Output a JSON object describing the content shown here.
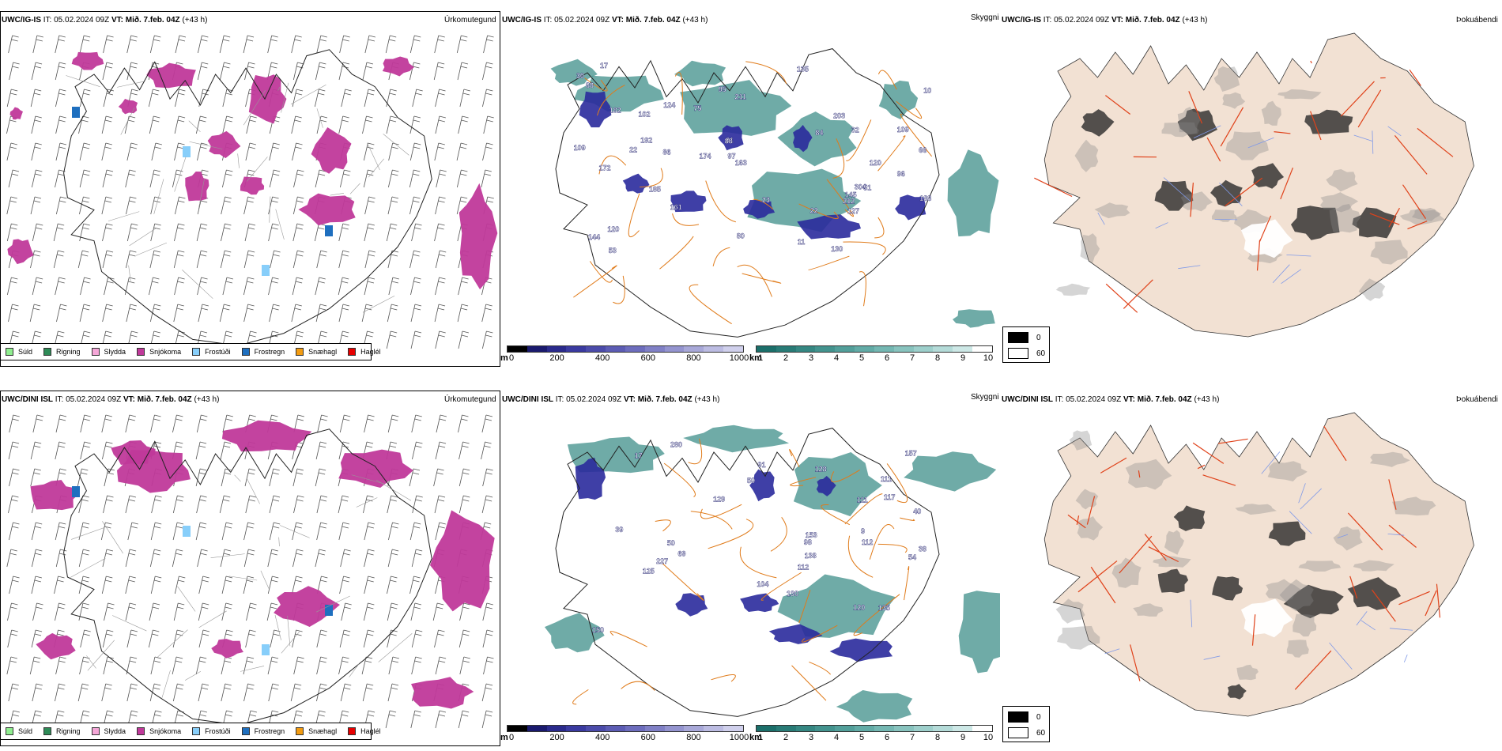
{
  "rows": [
    {
      "model": "UWC/IG-IS",
      "precip": {
        "title": "Úrkomutegund"
      },
      "cloud": {
        "title": "Skyggni"
      },
      "fog": {
        "title": "Þokuábendi"
      },
      "cloud_labels": [
        "135",
        "11",
        "86",
        "84",
        "75",
        "304",
        "144",
        "120",
        "102",
        "17",
        "95",
        "51",
        "53",
        "91",
        "10",
        "211",
        "185",
        "30",
        "80",
        "182",
        "161",
        "163",
        "97",
        "172",
        "32",
        "23",
        "127",
        "212",
        "203",
        "22",
        "130",
        "174",
        "120",
        "109",
        "145",
        "88",
        "66",
        "124",
        "188",
        "109",
        "192",
        "88",
        "22",
        "96"
      ]
    },
    {
      "model": "UWC/DINI ISL",
      "precip": {
        "title": "Úrkomutegund"
      },
      "cloud": {
        "title": "Skyggni"
      },
      "fog": {
        "title": "Þokuábendi"
      },
      "cloud_labels": [
        "130",
        "98",
        "111",
        "128",
        "39",
        "50",
        "69",
        "54",
        "104",
        "9",
        "129",
        "117",
        "91",
        "135",
        "153",
        "120",
        "112",
        "125",
        "157",
        "150",
        "111",
        "280",
        "50",
        "40",
        "17",
        "227",
        "112",
        "38",
        "138"
      ]
    }
  ],
  "header": {
    "it_label": "IT:",
    "it_value": "05.02.2024 09Z",
    "vt_label": "VT:",
    "vt_value": "Mið. 7.feb. 04Z",
    "lead": "(+43 h)"
  },
  "precip_legend": [
    {
      "label": "Súld",
      "color": "#90ee90"
    },
    {
      "label": "Rigning",
      "color": "#2e8b57"
    },
    {
      "label": "Slydda",
      "color": "#f4a6d7"
    },
    {
      "label": "Snjókoma",
      "color": "#c0399a"
    },
    {
      "label": "Frostúði",
      "color": "#87cefa"
    },
    {
      "label": "Frostregn",
      "color": "#1e6fbf"
    },
    {
      "label": "Snæhagl",
      "color": "#f39c12"
    },
    {
      "label": "Haglél",
      "color": "#e60000"
    }
  ],
  "cloudbase_bar": {
    "unit": "m",
    "ticks": [
      "0",
      "200",
      "400",
      "600",
      "800",
      "1000"
    ],
    "colors": [
      "#000000",
      "#1a1a6e",
      "#2a2a8c",
      "#3a3aa0",
      "#4b4baa",
      "#5c5cb4",
      "#6d6dbd",
      "#8080c6",
      "#9494cf",
      "#a8a8d8",
      "#bcbce2",
      "#d0d0ec"
    ]
  },
  "visibility_bar": {
    "unit": "km",
    "ticks": [
      "1",
      "2",
      "3",
      "4",
      "5",
      "6",
      "7",
      "8",
      "9",
      "10"
    ],
    "colors": [
      "#1b6f6a",
      "#287b76",
      "#358782",
      "#43938e",
      "#529f9a",
      "#62aba6",
      "#74b7b2",
      "#88c3be",
      "#9dcfcb",
      "#b4dbd8",
      "#cde8e6",
      "#ffffff"
    ]
  },
  "fog_legend": [
    {
      "label": "0",
      "color": "#000000"
    },
    {
      "label": "60",
      "color": "#ffffff"
    }
  ]
}
